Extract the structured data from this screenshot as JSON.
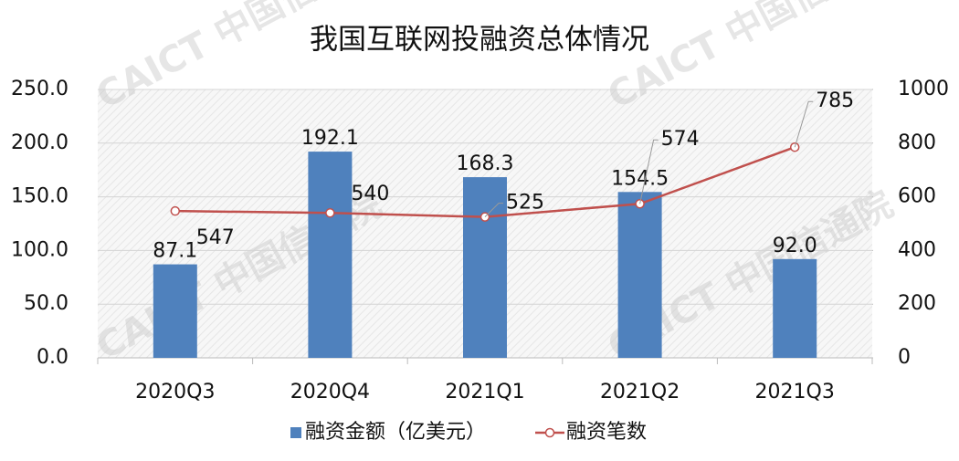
{
  "chart_data": {
    "type": "combo",
    "title": "我国互联网投融资总体情况",
    "watermark": "CAICT 中国信通院",
    "categories": [
      "2020Q3",
      "2020Q4",
      "2021Q1",
      "2021Q2",
      "2021Q3"
    ],
    "series": [
      {
        "name": "融资金额（亿美元）",
        "type": "bar",
        "color": "#4f81bd",
        "values": [
          87.1,
          192.1,
          168.3,
          154.5,
          92
        ],
        "value_labels": [
          "87.1",
          "192.1",
          "168.3",
          "154.5",
          "92.0"
        ]
      },
      {
        "name": "融资笔数",
        "type": "line",
        "axis": "y2",
        "color": "#c0504d",
        "values": [
          547,
          540,
          525,
          574,
          785
        ]
      }
    ],
    "ylim": [
      0,
      250
    ],
    "yticks": [
      {
        "value": 0,
        "label": "0.0"
      },
      {
        "value": 50,
        "label": "50.0"
      },
      {
        "value": 100,
        "label": "100.0"
      },
      {
        "value": 150,
        "label": "150.0"
      },
      {
        "value": 200,
        "label": "200.0"
      },
      {
        "value": 250,
        "label": "250.0"
      }
    ],
    "y2lim": [
      0,
      1000
    ],
    "y2ticks": [
      0,
      200,
      400,
      600,
      800,
      1000
    ],
    "grid": true,
    "legend": "bottom"
  }
}
